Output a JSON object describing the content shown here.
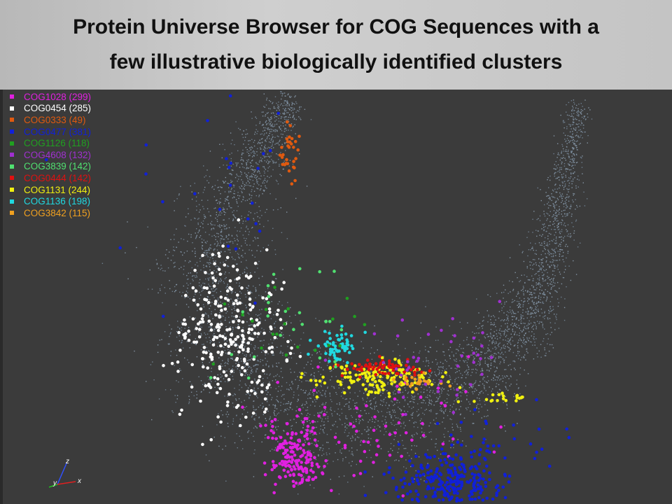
{
  "header": {
    "title_lines": [
      "Protein Universe Browser for COG Sequences with a",
      "few illustrative biologically identified clusters"
    ]
  },
  "legend": {
    "items": [
      {
        "label": "COG1028 (299)",
        "color": "#e020e0"
      },
      {
        "label": "COG0454 (285)",
        "color": "#ffffff"
      },
      {
        "label": "COG0333 (49)",
        "color": "#e05a10"
      },
      {
        "label": "COG0477 (381)",
        "color": "#1020d8"
      },
      {
        "label": "COG1126 (118)",
        "color": "#20a020"
      },
      {
        "label": "COG4608 (132)",
        "color": "#a030d0"
      },
      {
        "label": "COG3839 (142)",
        "color": "#50e070"
      },
      {
        "label": "COG0444 (142)",
        "color": "#e01010"
      },
      {
        "label": "COG1131 (244)",
        "color": "#f0f010"
      },
      {
        "label": "COG1136 (198)",
        "color": "#20d8e0"
      },
      {
        "label": "COG3842 (115)",
        "color": "#f0a020"
      }
    ]
  },
  "axes_triad": {
    "z": "z",
    "x": "x",
    "y": "y"
  }
}
